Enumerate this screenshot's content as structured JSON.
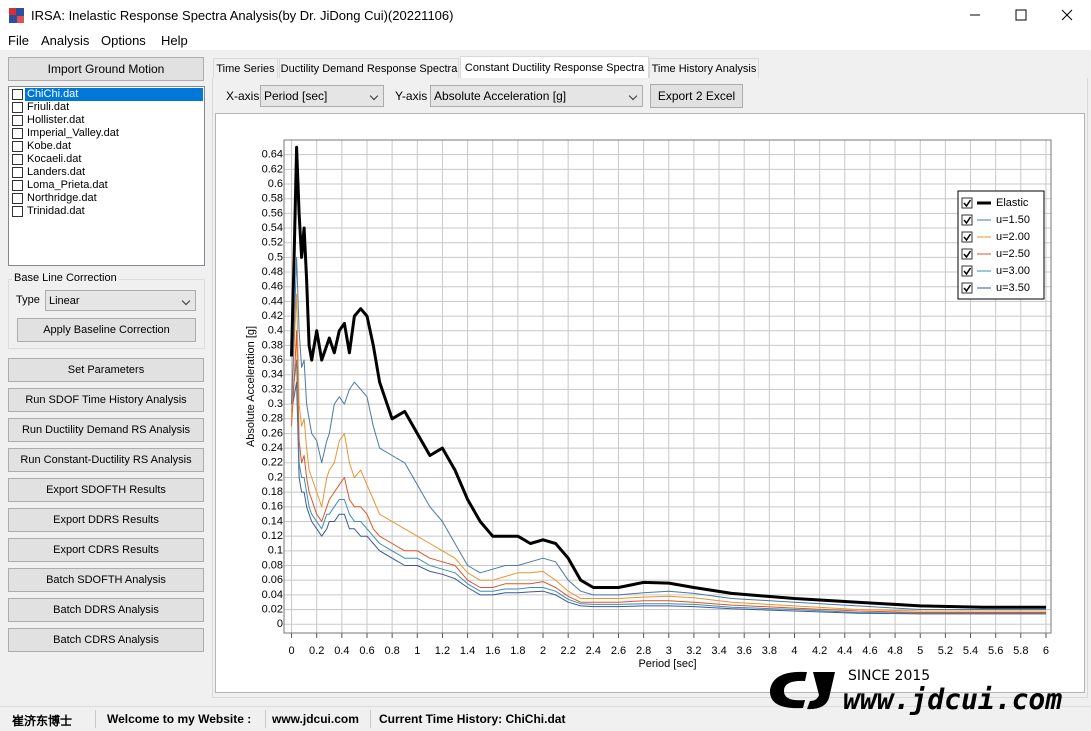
{
  "window": {
    "title": "IRSA: Inelastic Response Spectra Analysis(by Dr. JiDong Cui)(20221106)"
  },
  "menu": [
    "File",
    "Analysis",
    "Options",
    "Help"
  ],
  "left_panel": {
    "import_button": "Import Ground Motion",
    "files": [
      "ChiChi.dat",
      "Friuli.dat",
      "Hollister.dat",
      "Imperial_Valley.dat",
      "Kobe.dat",
      "Kocaeli.dat",
      "Landers.dat",
      "Loma_Prieta.dat",
      "Northridge.dat",
      "Trinidad.dat"
    ],
    "selected_file": 0,
    "baseline": {
      "title": "Base Line Correction",
      "type_label": "Type",
      "type_value": "Linear",
      "apply_button": "Apply Baseline Correction"
    },
    "buttons": [
      "Set Parameters",
      "Run SDOF Time History Analysis",
      "Run Ductility Demand RS Analysis",
      "Run Constant-Ductility RS Analysis",
      "Export SDOFTH Results",
      "Export DDRS Results",
      "Export CDRS Results",
      "Batch SDOFTH Analysis",
      "Batch DDRS Analysis",
      "Batch CDRS Analysis"
    ]
  },
  "tabs": [
    "Time Series",
    "Ductility Demand Response Spectra",
    "Constant Ductility Response Spectra",
    "Time History Analysis"
  ],
  "active_tab": 2,
  "toolbar": {
    "x_label": "X-axis",
    "x_value": "Period [sec]",
    "y_label": "Y-axis",
    "y_value": "Absolute Acceleration [g]",
    "export_button": "Export 2 Excel"
  },
  "chart_data": {
    "type": "line",
    "x_label": "Period [sec]",
    "y_label": "Absolute Acceleration [g]",
    "xlim": [
      -0.06,
      6.04
    ],
    "ylim": [
      -0.012,
      0.66
    ],
    "xticks": [
      0,
      0.2,
      0.4,
      0.6,
      0.8,
      1,
      1.2,
      1.4,
      1.6,
      1.8,
      2,
      2.2,
      2.4,
      2.6,
      2.8,
      3,
      3.2,
      3.4,
      3.6,
      3.8,
      4,
      4.2,
      4.4,
      4.6,
      4.8,
      5,
      5.2,
      5.4,
      5.6,
      5.8,
      6
    ],
    "yticks": [
      0,
      0.02,
      0.04,
      0.06,
      0.08,
      0.1,
      0.12,
      0.14,
      0.16,
      0.18,
      0.2,
      0.22,
      0.24,
      0.26,
      0.28,
      0.3,
      0.32,
      0.34,
      0.36,
      0.38,
      0.4,
      0.42,
      0.44,
      0.46,
      0.48,
      0.5,
      0.52,
      0.54,
      0.56,
      0.58,
      0.6,
      0.62,
      0.64
    ],
    "grid": true,
    "legend": "upper right",
    "x": [
      0,
      0.02,
      0.04,
      0.06,
      0.08,
      0.1,
      0.12,
      0.14,
      0.16,
      0.2,
      0.24,
      0.28,
      0.3,
      0.34,
      0.38,
      0.42,
      0.46,
      0.5,
      0.55,
      0.6,
      0.65,
      0.7,
      0.8,
      0.9,
      1.0,
      1.1,
      1.2,
      1.3,
      1.4,
      1.5,
      1.6,
      1.7,
      1.8,
      1.9,
      2.0,
      2.1,
      2.2,
      2.3,
      2.4,
      2.6,
      2.8,
      3.0,
      3.2,
      3.5,
      4.0,
      4.5,
      5.0,
      5.5,
      6.0
    ],
    "series": [
      {
        "name": "Elastic",
        "color": "#000000",
        "width": 3,
        "values": [
          0.365,
          0.5,
          0.65,
          0.56,
          0.5,
          0.54,
          0.47,
          0.38,
          0.36,
          0.4,
          0.36,
          0.38,
          0.39,
          0.37,
          0.4,
          0.41,
          0.37,
          0.42,
          0.43,
          0.42,
          0.38,
          0.33,
          0.28,
          0.29,
          0.26,
          0.23,
          0.24,
          0.21,
          0.17,
          0.14,
          0.12,
          0.12,
          0.12,
          0.11,
          0.115,
          0.11,
          0.09,
          0.06,
          0.05,
          0.05,
          0.057,
          0.056,
          0.05,
          0.042,
          0.035,
          0.03,
          0.025,
          0.023,
          0.023
        ]
      },
      {
        "name": "u=1.50",
        "color": "#4a78a8",
        "width": 1,
        "values": [
          0.3,
          0.4,
          0.5,
          0.4,
          0.35,
          0.36,
          0.3,
          0.28,
          0.26,
          0.25,
          0.22,
          0.25,
          0.26,
          0.3,
          0.31,
          0.3,
          0.32,
          0.33,
          0.32,
          0.31,
          0.27,
          0.24,
          0.23,
          0.22,
          0.19,
          0.16,
          0.14,
          0.11,
          0.08,
          0.07,
          0.075,
          0.08,
          0.08,
          0.085,
          0.09,
          0.085,
          0.06,
          0.045,
          0.04,
          0.04,
          0.043,
          0.045,
          0.042,
          0.035,
          0.03,
          0.025,
          0.02,
          0.02,
          0.02
        ]
      },
      {
        "name": "u=2.00",
        "color": "#ea9430",
        "width": 1,
        "values": [
          0.28,
          0.38,
          0.45,
          0.3,
          0.27,
          0.28,
          0.24,
          0.21,
          0.2,
          0.18,
          0.16,
          0.2,
          0.21,
          0.22,
          0.25,
          0.26,
          0.22,
          0.2,
          0.21,
          0.19,
          0.17,
          0.15,
          0.14,
          0.13,
          0.12,
          0.11,
          0.1,
          0.09,
          0.07,
          0.06,
          0.06,
          0.065,
          0.07,
          0.07,
          0.072,
          0.06,
          0.045,
          0.035,
          0.035,
          0.035,
          0.037,
          0.038,
          0.036,
          0.03,
          0.025,
          0.02,
          0.018,
          0.018,
          0.018
        ]
      },
      {
        "name": "u=2.50",
        "color": "#d9562a",
        "width": 1,
        "values": [
          0.27,
          0.33,
          0.4,
          0.25,
          0.22,
          0.23,
          0.2,
          0.18,
          0.17,
          0.15,
          0.14,
          0.16,
          0.17,
          0.18,
          0.19,
          0.2,
          0.17,
          0.16,
          0.16,
          0.15,
          0.13,
          0.12,
          0.11,
          0.1,
          0.1,
          0.09,
          0.085,
          0.08,
          0.06,
          0.05,
          0.05,
          0.055,
          0.055,
          0.055,
          0.058,
          0.05,
          0.038,
          0.03,
          0.03,
          0.03,
          0.032,
          0.032,
          0.03,
          0.026,
          0.022,
          0.018,
          0.016,
          0.016,
          0.016
        ]
      },
      {
        "name": "u=3.00",
        "color": "#3e8db2",
        "width": 1,
        "values": [
          0.3,
          0.33,
          0.36,
          0.22,
          0.2,
          0.2,
          0.18,
          0.16,
          0.15,
          0.14,
          0.13,
          0.15,
          0.15,
          0.16,
          0.17,
          0.17,
          0.15,
          0.14,
          0.14,
          0.13,
          0.12,
          0.11,
          0.1,
          0.09,
          0.09,
          0.08,
          0.075,
          0.07,
          0.055,
          0.045,
          0.045,
          0.048,
          0.048,
          0.05,
          0.05,
          0.045,
          0.034,
          0.028,
          0.027,
          0.027,
          0.028,
          0.028,
          0.027,
          0.023,
          0.02,
          0.016,
          0.015,
          0.015,
          0.015
        ]
      },
      {
        "name": "u=3.50",
        "color": "#385a9c",
        "width": 1,
        "values": [
          0.29,
          0.31,
          0.33,
          0.2,
          0.18,
          0.18,
          0.16,
          0.15,
          0.14,
          0.13,
          0.12,
          0.13,
          0.14,
          0.14,
          0.15,
          0.15,
          0.13,
          0.13,
          0.12,
          0.12,
          0.11,
          0.1,
          0.09,
          0.08,
          0.08,
          0.072,
          0.068,
          0.062,
          0.05,
          0.04,
          0.04,
          0.043,
          0.043,
          0.044,
          0.045,
          0.04,
          0.03,
          0.025,
          0.024,
          0.024,
          0.025,
          0.025,
          0.024,
          0.021,
          0.018,
          0.015,
          0.014,
          0.014,
          0.014
        ]
      }
    ]
  },
  "status_bar": [
    "崔济东博士",
    "Welcome to my Website :",
    "www.jdcui.com",
    "Current Time History: ChiChi.dat"
  ],
  "watermark": {
    "since": "SINCE 2015",
    "url": "www.jdcui.com"
  }
}
